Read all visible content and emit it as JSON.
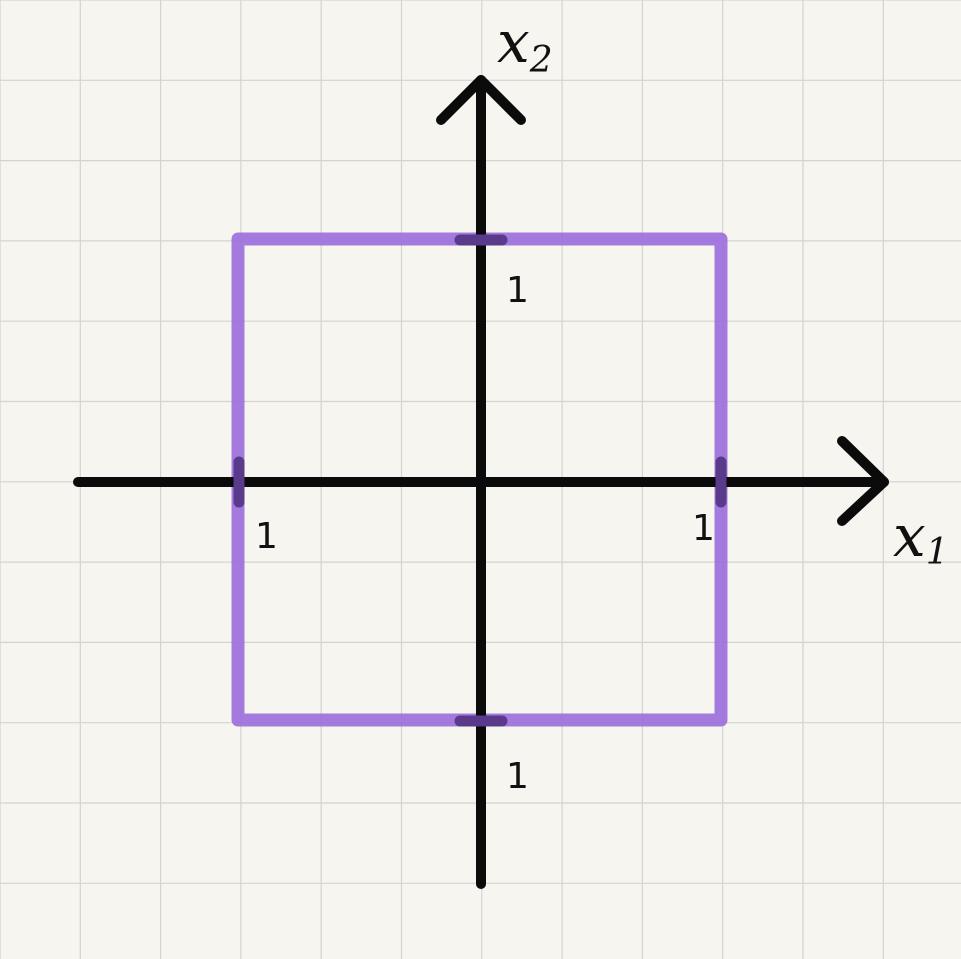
{
  "axes": {
    "x_label": "x",
    "x_label_subscript": "1",
    "y_label": "x",
    "y_label_subscript": "2"
  },
  "tick_labels": {
    "x_positive": "1",
    "x_negative": "1",
    "y_positive": "1",
    "y_negative": "1"
  },
  "shape": {
    "type": "square",
    "vertices": [
      [
        -1,
        1
      ],
      [
        1,
        1
      ],
      [
        1,
        -1
      ],
      [
        -1,
        -1
      ]
    ]
  },
  "colors": {
    "background": "#f7f5f0",
    "grid": "#d5d3ce",
    "axes": "#0b0b0b",
    "square": "#9a6ddb",
    "tick_marks": "#5a3a8a"
  }
}
